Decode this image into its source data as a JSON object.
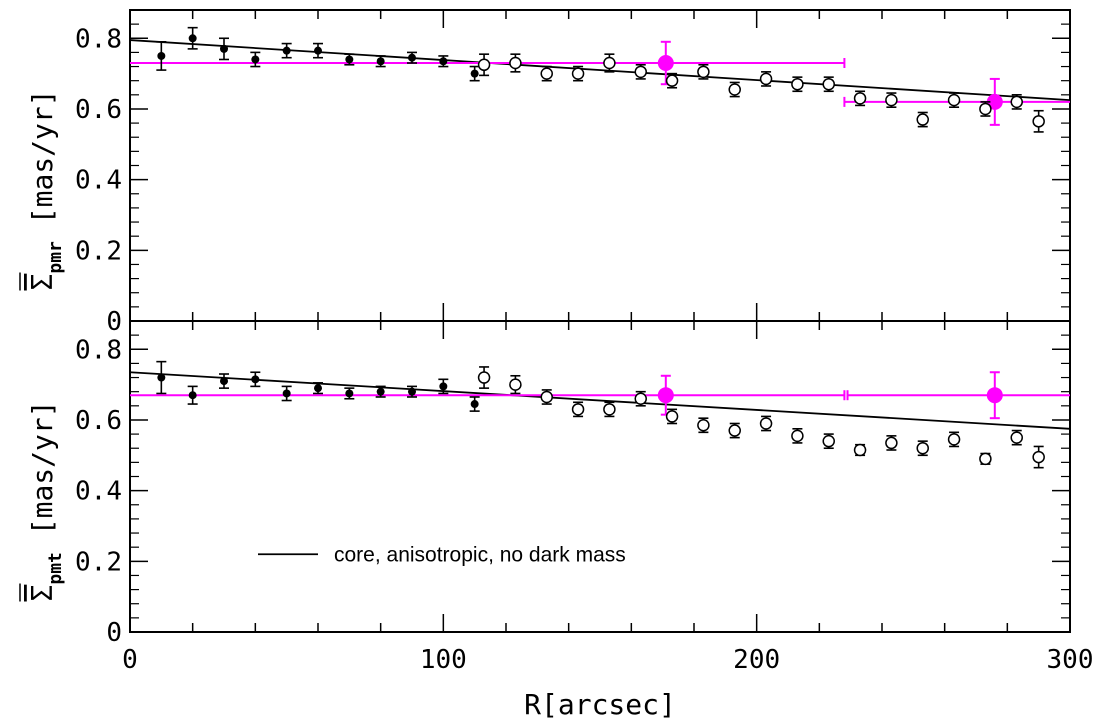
{
  "chart_data": [
    {
      "type": "scatter",
      "panel": "top",
      "ylabel_symbol": "Σ",
      "ylabel_sub": "pmr",
      "ylabel_unit": "[mas/yr]",
      "xlim": [
        0,
        300
      ],
      "ylim": [
        0,
        0.88
      ],
      "y_ticks": [
        0,
        0.2,
        0.4,
        0.6,
        0.8
      ],
      "y_tick_labels": [
        "0",
        "0.2",
        "0.4",
        "0.6",
        "0.8"
      ],
      "grid": false,
      "colors": {
        "data": "#000000",
        "binned": "#ff00ff",
        "model": "#000000"
      },
      "series": [
        {
          "marker": "filled",
          "x": [
            10,
            20,
            30,
            40,
            50,
            60,
            70,
            80,
            90,
            100,
            110
          ],
          "y": [
            0.75,
            0.8,
            0.77,
            0.74,
            0.765,
            0.765,
            0.74,
            0.735,
            0.745,
            0.735,
            0.7
          ],
          "err": [
            0.04,
            0.03,
            0.03,
            0.02,
            0.02,
            0.02,
            0.015,
            0.015,
            0.015,
            0.015,
            0.02
          ]
        },
        {
          "marker": "open",
          "x": [
            113,
            123,
            133,
            143,
            153,
            163,
            173,
            183,
            193,
            203,
            213,
            223,
            233,
            243,
            253,
            263,
            273,
            283,
            290
          ],
          "y": [
            0.725,
            0.73,
            0.7,
            0.7,
            0.73,
            0.705,
            0.68,
            0.705,
            0.655,
            0.685,
            0.67,
            0.67,
            0.63,
            0.625,
            0.57,
            0.625,
            0.6,
            0.62,
            0.565
          ],
          "err": [
            0.03,
            0.025,
            0.02,
            0.02,
            0.025,
            0.02,
            0.02,
            0.02,
            0.02,
            0.02,
            0.02,
            0.02,
            0.02,
            0.02,
            0.02,
            0.02,
            0.02,
            0.02,
            0.03
          ]
        },
        {
          "marker": "binned",
          "x": [
            171,
            276
          ],
          "y": [
            0.73,
            0.62
          ],
          "yerr": [
            0.06,
            0.065
          ],
          "xmin": [
            0,
            228
          ],
          "xmax": [
            228,
            300
          ]
        }
      ],
      "model": {
        "x": [
          0,
          300
        ],
        "y": [
          0.795,
          0.625
        ]
      }
    },
    {
      "type": "scatter",
      "panel": "bottom",
      "ylabel_symbol": "Σ",
      "ylabel_sub": "pmt",
      "ylabel_unit": "[mas/yr]",
      "xlabel": "R[arcsec]",
      "xlim": [
        0,
        300
      ],
      "ylim": [
        0,
        0.88
      ],
      "x_ticks": [
        0,
        100,
        200,
        300
      ],
      "x_tick_labels": [
        "0",
        "100",
        "200",
        "300"
      ],
      "y_ticks": [
        0,
        0.2,
        0.4,
        0.6,
        0.8
      ],
      "y_tick_labels": [
        "0",
        "0.2",
        "0.4",
        "0.6",
        "0.8"
      ],
      "grid": false,
      "legend": {
        "label": "core, anisotropic, no dark mass",
        "placement": "lower-left"
      },
      "colors": {
        "data": "#000000",
        "binned": "#ff00ff",
        "model": "#000000"
      },
      "series": [
        {
          "marker": "filled",
          "x": [
            10,
            20,
            30,
            40,
            50,
            60,
            70,
            80,
            90,
            100,
            110
          ],
          "y": [
            0.72,
            0.67,
            0.71,
            0.715,
            0.675,
            0.69,
            0.675,
            0.68,
            0.68,
            0.695,
            0.645
          ],
          "err": [
            0.045,
            0.025,
            0.02,
            0.02,
            0.02,
            0.015,
            0.015,
            0.015,
            0.015,
            0.02,
            0.02
          ]
        },
        {
          "marker": "open",
          "x": [
            113,
            123,
            133,
            143,
            153,
            163,
            173,
            183,
            193,
            203,
            213,
            223,
            233,
            243,
            253,
            263,
            273,
            283,
            290
          ],
          "y": [
            0.72,
            0.7,
            0.665,
            0.63,
            0.63,
            0.66,
            0.61,
            0.585,
            0.57,
            0.59,
            0.555,
            0.54,
            0.515,
            0.535,
            0.52,
            0.545,
            0.49,
            0.55,
            0.495
          ],
          "err": [
            0.03,
            0.025,
            0.02,
            0.02,
            0.02,
            0.02,
            0.02,
            0.02,
            0.02,
            0.02,
            0.02,
            0.02,
            0.015,
            0.02,
            0.02,
            0.02,
            0.015,
            0.02,
            0.03
          ]
        },
        {
          "marker": "binned",
          "x": [
            171,
            276
          ],
          "y": [
            0.67,
            0.67
          ],
          "yerr": [
            0.055,
            0.065
          ],
          "xmin": [
            0,
            229
          ],
          "xmax": [
            228,
            300
          ]
        }
      ],
      "model": {
        "x": [
          0,
          300
        ],
        "y": [
          0.735,
          0.575
        ]
      }
    }
  ]
}
